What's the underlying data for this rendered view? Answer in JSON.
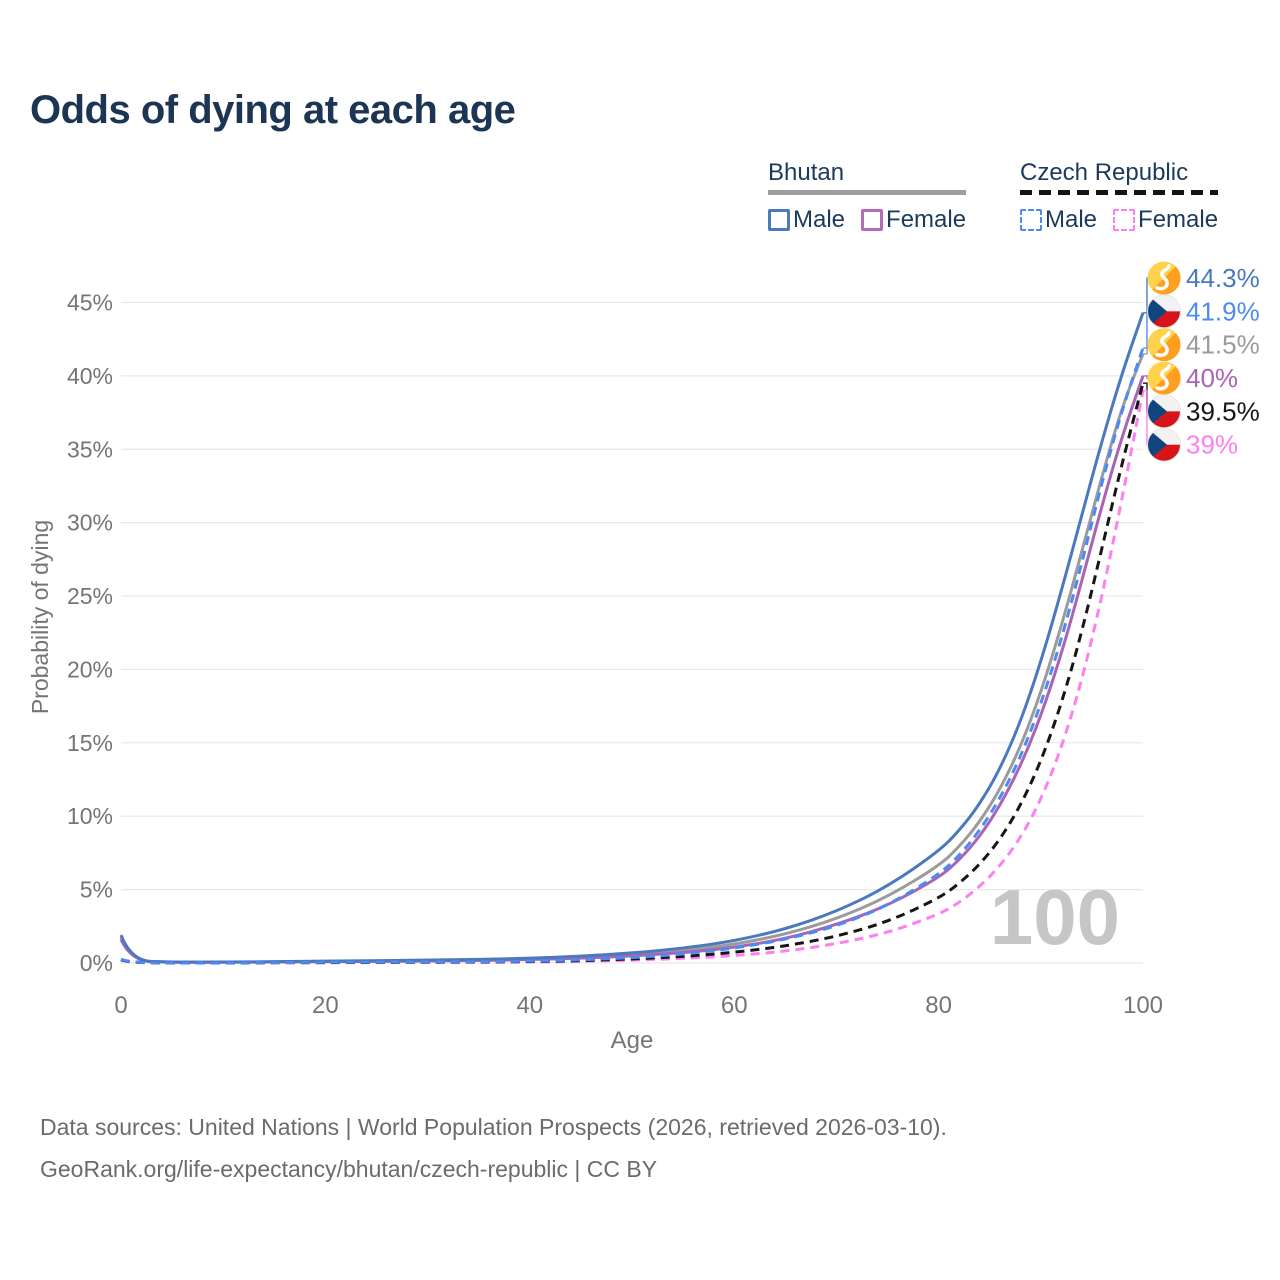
{
  "title": "Odds of dying at each age",
  "watermark": "100",
  "legend": {
    "groups": [
      {
        "name": "Bhutan",
        "line_style": "solid",
        "underline_color": "#9e9e9e",
        "items": [
          {
            "label": "Male",
            "color": "#4a79bd"
          },
          {
            "label": "Female",
            "color": "#b76ab8"
          }
        ]
      },
      {
        "name": "Czech Republic",
        "line_style": "dashed",
        "underline_color": "#141414",
        "items": [
          {
            "label": "Male",
            "color": "#4b8af7"
          },
          {
            "label": "Female",
            "color": "#fc80f0"
          }
        ]
      }
    ]
  },
  "footer": {
    "line1": "Data sources: United Nations | World Population Prospects (2026, retrieved 2026-03-10).",
    "line2": "GeoRank.org/life-expectancy/bhutan/czech-republic | CC BY"
  },
  "chart_data": {
    "type": "line",
    "title": "Odds of dying at each age",
    "xlabel": "Age",
    "ylabel": "Probability of dying",
    "xlim": [
      0,
      100
    ],
    "ylim_pct": [
      0,
      45
    ],
    "grid": "horizontal",
    "x_ticks": [
      {
        "value": 0,
        "label": "0"
      },
      {
        "value": 20,
        "label": "20"
      },
      {
        "value": 40,
        "label": "40"
      },
      {
        "value": 60,
        "label": "60"
      },
      {
        "value": 80,
        "label": "80"
      },
      {
        "value": 100,
        "label": "100"
      }
    ],
    "y_ticks": [
      {
        "value": 0,
        "label": "0%"
      },
      {
        "value": 5,
        "label": "5%"
      },
      {
        "value": 10,
        "label": "10%"
      },
      {
        "value": 15,
        "label": "15%"
      },
      {
        "value": 20,
        "label": "20%"
      },
      {
        "value": 25,
        "label": "25%"
      },
      {
        "value": 30,
        "label": "30%"
      },
      {
        "value": 35,
        "label": "35%"
      },
      {
        "value": 40,
        "label": "40%"
      },
      {
        "value": 45,
        "label": "45%"
      }
    ],
    "x": [
      0,
      1,
      5,
      10,
      15,
      20,
      25,
      30,
      35,
      40,
      45,
      50,
      55,
      60,
      65,
      70,
      75,
      80,
      82,
      84,
      86,
      88,
      90,
      92,
      94,
      96,
      98,
      100
    ],
    "series": [
      {
        "name": "Bhutan Both sexes",
        "country": "Bhutan",
        "style": "solid",
        "color": "#9b9b9b",
        "values": [
          1.75,
          0.14,
          0.055,
          0.055,
          0.08,
          0.11,
          0.13,
          0.16,
          0.2,
          0.27,
          0.39,
          0.57,
          0.84,
          1.26,
          1.95,
          3.0,
          4.5,
          6.6,
          7.9,
          9.6,
          11.8,
          14.7,
          18.4,
          22.9,
          28.0,
          33.2,
          38.0,
          41.5
        ]
      },
      {
        "name": "Bhutan Female",
        "country": "Bhutan",
        "style": "solid",
        "color": "#a964b4",
        "values": [
          1.6,
          0.13,
          0.05,
          0.05,
          0.07,
          0.09,
          0.11,
          0.13,
          0.17,
          0.23,
          0.33,
          0.48,
          0.7,
          1.05,
          1.65,
          2.6,
          3.9,
          5.8,
          7.0,
          8.6,
          10.7,
          13.4,
          16.8,
          21.0,
          26.0,
          31.2,
          36.0,
          40.0
        ]
      },
      {
        "name": "Bhutan Male",
        "country": "Bhutan",
        "style": "solid",
        "color": "#4a79bd",
        "values": [
          1.9,
          0.15,
          0.06,
          0.06,
          0.09,
          0.13,
          0.16,
          0.19,
          0.24,
          0.32,
          0.46,
          0.68,
          1.0,
          1.5,
          2.3,
          3.5,
          5.2,
          7.6,
          9.0,
          10.8,
          13.2,
          16.4,
          20.5,
          25.3,
          30.5,
          35.6,
          40.3,
          44.3
        ]
      },
      {
        "name": "Czech Republic Female",
        "country": "Czech Republic",
        "style": "dashed",
        "color": "#fc80f0",
        "values": [
          0.2,
          0.02,
          0.01,
          0.01,
          0.02,
          0.02,
          0.03,
          0.04,
          0.05,
          0.07,
          0.11,
          0.19,
          0.31,
          0.5,
          0.8,
          1.3,
          2.05,
          3.3,
          4.1,
          5.2,
          6.6,
          8.5,
          11.1,
          14.6,
          19.2,
          25.0,
          31.8,
          39.0
        ]
      },
      {
        "name": "Czech Republic Both sexes",
        "country": "Czech Republic",
        "style": "dashed",
        "color": "#161616",
        "values": [
          0.22,
          0.02,
          0.01,
          0.01,
          0.02,
          0.03,
          0.04,
          0.05,
          0.07,
          0.1,
          0.16,
          0.27,
          0.44,
          0.72,
          1.15,
          1.8,
          2.8,
          4.4,
          5.4,
          6.7,
          8.4,
          10.7,
          13.7,
          17.6,
          22.5,
          28.3,
          34.2,
          39.5
        ]
      },
      {
        "name": "Czech Republic Male",
        "country": "Czech Republic",
        "style": "dashed",
        "color": "#4b8af7",
        "values": [
          0.25,
          0.02,
          0.01,
          0.01,
          0.03,
          0.05,
          0.06,
          0.07,
          0.09,
          0.13,
          0.21,
          0.36,
          0.6,
          1.0,
          1.6,
          2.5,
          3.9,
          6.0,
          7.3,
          9.0,
          11.2,
          14.0,
          17.6,
          22.0,
          27.2,
          32.8,
          37.8,
          41.9
        ]
      }
    ],
    "end_labels": [
      {
        "text": "44.3%",
        "end_value": 44.3,
        "flag": "bhutan",
        "color": "#4a79bd",
        "series": "Bhutan Male"
      },
      {
        "text": "41.9%",
        "end_value": 41.9,
        "flag": "czech",
        "color": "#4b8af7",
        "series": "Czech Republic Male"
      },
      {
        "text": "41.5%",
        "end_value": 41.5,
        "flag": "bhutan",
        "color": "#9b9b9b",
        "series": "Bhutan Both sexes"
      },
      {
        "text": "40%",
        "end_value": 40.0,
        "flag": "bhutan",
        "color": "#a964b4",
        "series": "Bhutan Female"
      },
      {
        "text": "39.5%",
        "end_value": 39.5,
        "flag": "czech",
        "color": "#161616",
        "series": "Czech Republic Both sexes"
      },
      {
        "text": "39%",
        "end_value": 39.0,
        "flag": "czech",
        "color": "#fc80f0",
        "series": "Czech Republic Female"
      }
    ],
    "legend_position": "top-right",
    "colors": {
      "title": "#1c3554",
      "axis_text": "#757575",
      "gridline": "#e8e8e8",
      "watermark": "#c6c6c6",
      "footer_text": "#6b6b6b",
      "czech_flag_red": "#d7141a",
      "czech_flag_blue": "#11457e",
      "bhutan_flag_yellow": "#ffd24d",
      "bhutan_flag_orange": "#ff9e1f"
    }
  }
}
